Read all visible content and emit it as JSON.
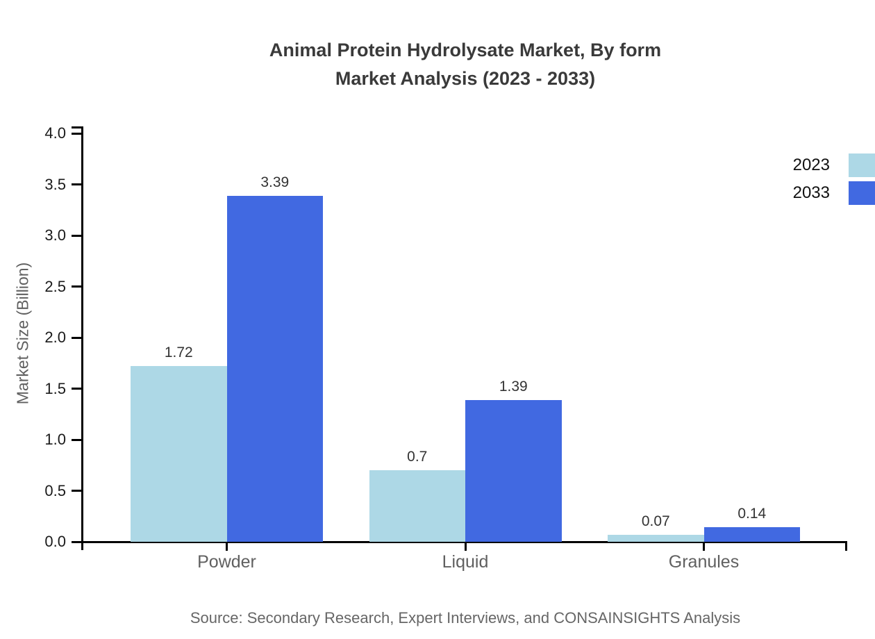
{
  "page": {
    "title_line1": "Animal Protein Hydrolysate Market, By form",
    "title_line2": "Market Analysis (2023 - 2033)",
    "source_note": "Source: Secondary Research, Expert Interviews, and CONSAINSIGHTS Analysis"
  },
  "colors": {
    "series_2023": "#ADD8E6",
    "series_2033": "#4169E1",
    "axis": "#000000",
    "title_text": "#3a3a3a",
    "tick_label_text": "#1a1a1a",
    "muted_text": "#606060",
    "value_label_text": "#333333",
    "background": "#ffffff"
  },
  "chart_data": {
    "type": "bar",
    "title": "Animal Protein Hydrolysate Market, By form Market Analysis (2023 - 2033)",
    "categories": [
      "Powder",
      "Liquid",
      "Granules"
    ],
    "series": [
      {
        "name": "2023",
        "color": "#ADD8E6",
        "values": [
          1.72,
          0.7,
          0.07
        ],
        "value_labels": [
          "1.72",
          "0.7",
          "0.07"
        ]
      },
      {
        "name": "2033",
        "color": "#4169E1",
        "values": [
          3.39,
          1.39,
          0.14
        ],
        "value_labels": [
          "3.39",
          "1.39",
          "0.14"
        ]
      }
    ],
    "xlabel": "",
    "ylabel": "Market Size (Billion)",
    "ylim": [
      0.0,
      4.0
    ],
    "yticks": [
      0.0,
      0.5,
      1.0,
      1.5,
      2.0,
      2.5,
      3.0,
      3.5,
      4.0
    ],
    "ytick_labels": [
      "0.0",
      "0.5",
      "1.0",
      "1.5",
      "2.0",
      "2.5",
      "3.0",
      "3.5",
      "4.0"
    ],
    "grid": false,
    "legend_position": "top-right",
    "source": "Source: Secondary Research, Expert Interviews, and CONSAINSIGHTS Analysis"
  }
}
